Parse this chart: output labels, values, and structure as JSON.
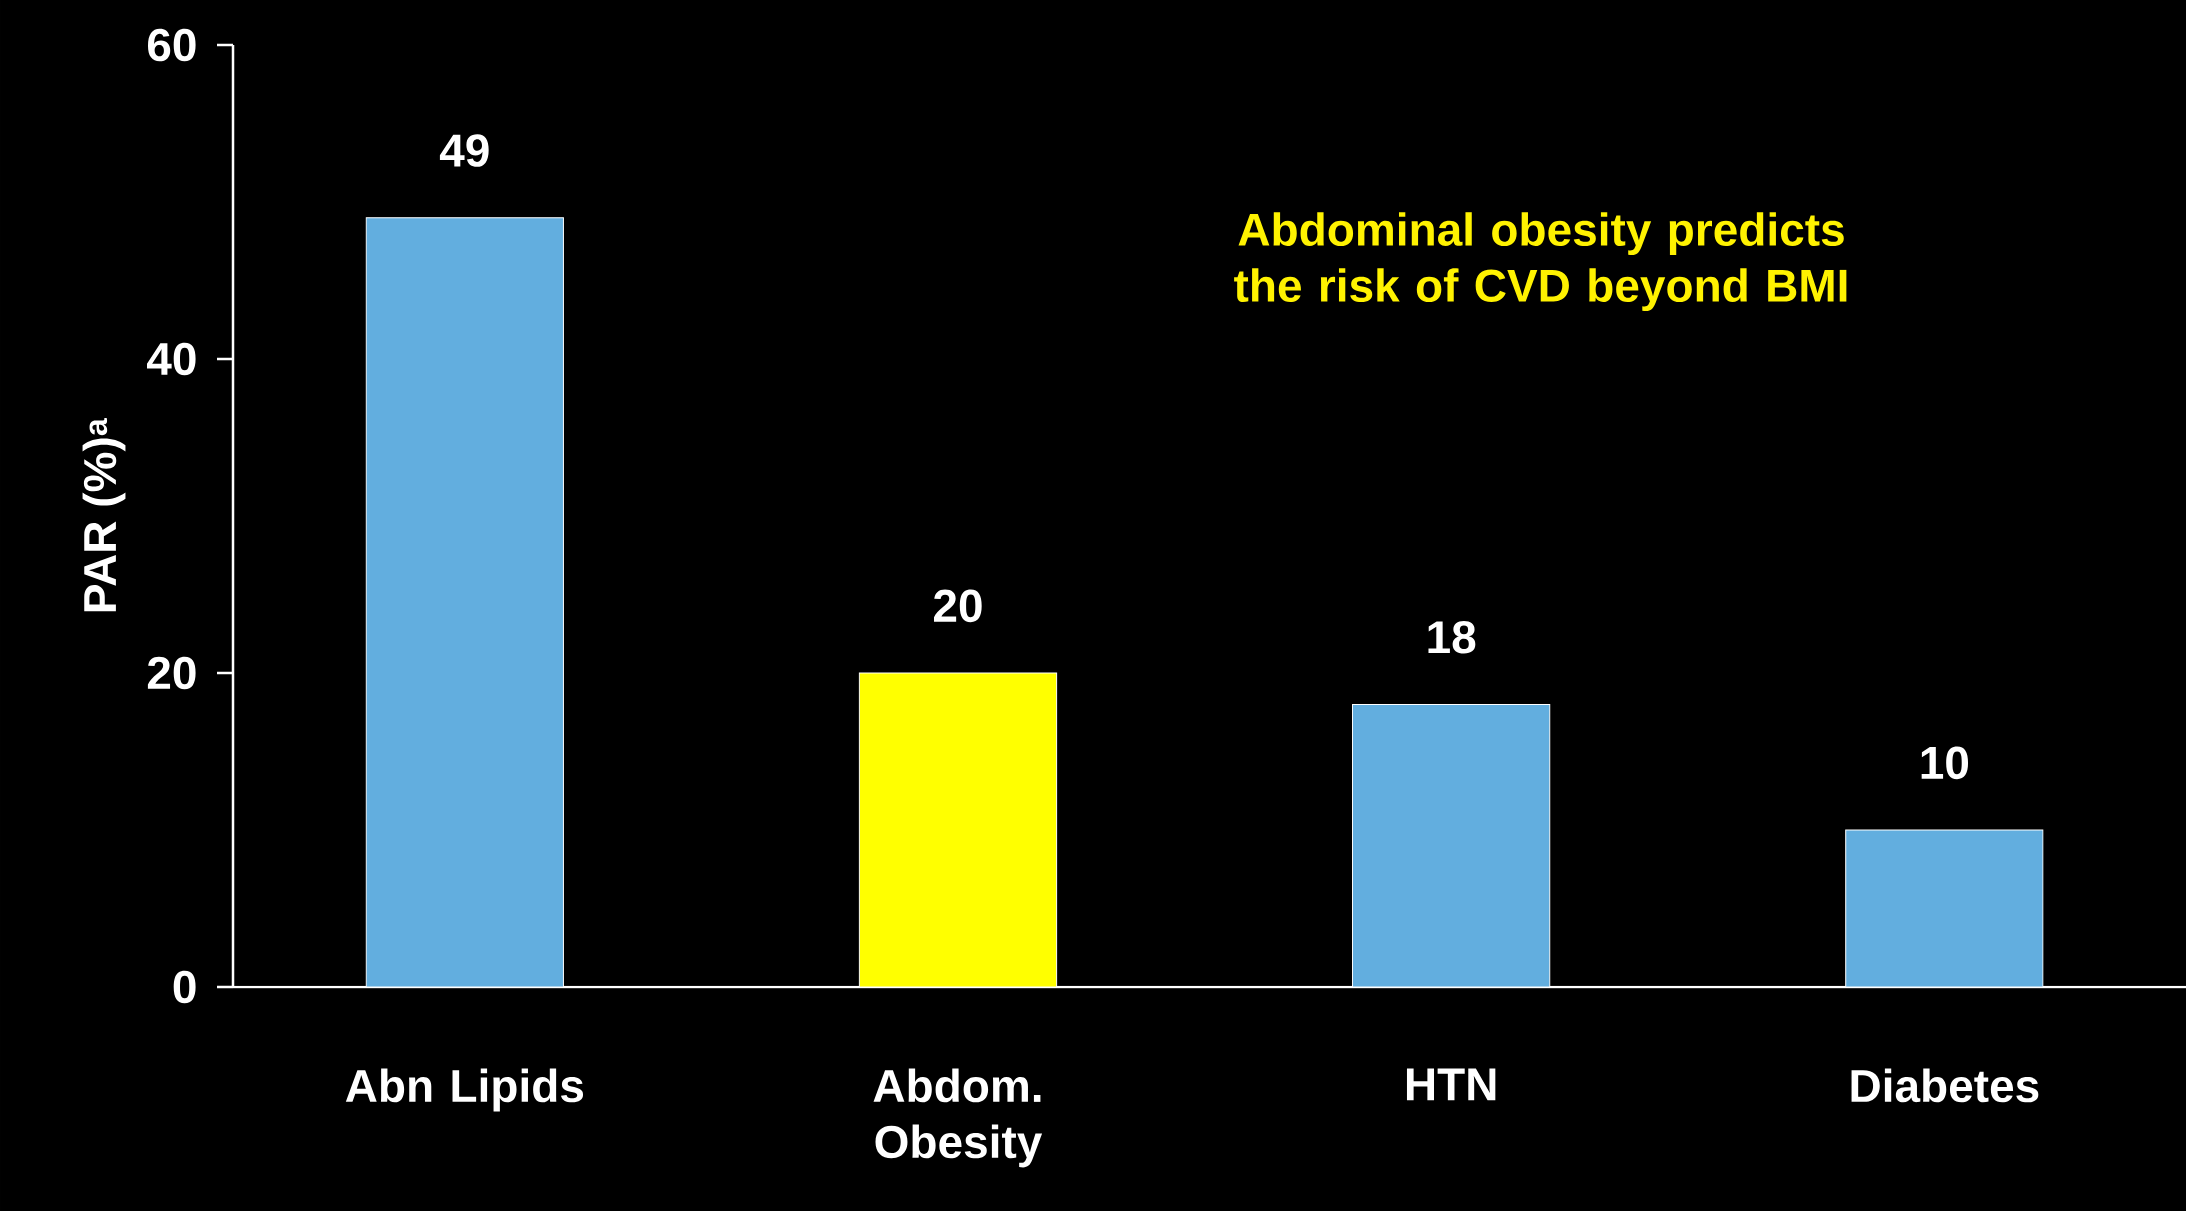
{
  "chart_data": {
    "type": "bar",
    "ylabel": "PAR (%)$^{a}$",
    "categories": [
      "Abn Lipids",
      "Abdom. Obesity",
      "HTN",
      "Diabetes"
    ],
    "values": [
      49,
      20,
      18,
      10
    ],
    "colors": [
      "#62aedf",
      "#ffff00",
      "#62aedf",
      "#62aedf"
    ],
    "ylim": [
      0,
      60
    ],
    "yticks": [
      0,
      20,
      40,
      60
    ],
    "data_labels": true,
    "grid": false,
    "annotations": [
      "Abdominal obesity predicts the risk of CVD beyond BMI"
    ]
  }
}
